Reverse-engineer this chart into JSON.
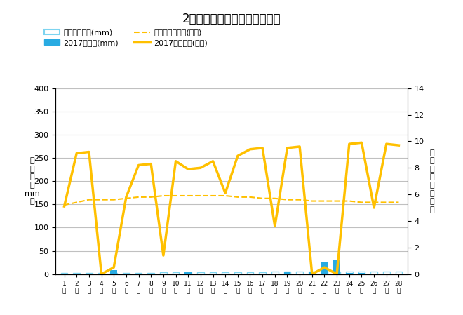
{
  "title": "2月降水量・日照時間（日別）",
  "days": [
    1,
    2,
    3,
    4,
    5,
    6,
    7,
    8,
    9,
    10,
    11,
    12,
    13,
    14,
    15,
    16,
    17,
    18,
    19,
    20,
    21,
    22,
    23,
    24,
    25,
    26,
    27,
    28
  ],
  "precipitation_2017": [
    0,
    0,
    0,
    0,
    8,
    0,
    0,
    0,
    0,
    0,
    5,
    0,
    0,
    0,
    0,
    0,
    0,
    0,
    5,
    0,
    6,
    25,
    30,
    3,
    3,
    0,
    0,
    0
  ],
  "precipitation_avg": [
    3,
    3,
    3,
    3,
    3,
    3,
    3,
    3,
    4,
    4,
    4,
    4,
    4,
    4,
    4,
    4,
    4,
    5,
    5,
    5,
    5,
    5,
    5,
    5,
    5,
    5,
    5,
    5
  ],
  "sunshine_2017": [
    5.1,
    9.1,
    9.2,
    0.0,
    0.5,
    5.8,
    8.2,
    8.3,
    1.4,
    8.5,
    7.9,
    8.0,
    8.5,
    6.1,
    8.9,
    9.4,
    9.5,
    3.6,
    9.5,
    9.6,
    0.0,
    0.5,
    0.0,
    9.8,
    9.9,
    5.0,
    9.8,
    9.7
  ],
  "sunshine_avg": [
    5.2,
    5.4,
    5.6,
    5.6,
    5.6,
    5.7,
    5.8,
    5.8,
    5.9,
    5.9,
    5.9,
    5.9,
    5.9,
    5.9,
    5.8,
    5.8,
    5.7,
    5.7,
    5.6,
    5.6,
    5.5,
    5.5,
    5.5,
    5.5,
    5.4,
    5.4,
    5.4,
    5.4
  ],
  "ylim_left": [
    0,
    400
  ],
  "ylim_right": [
    0,
    14
  ],
  "bar_color_2017": "#29ABE2",
  "bar_avg_edge_color": "#7DD4F0",
  "bar_avg_face_color": "none",
  "line_sunshine_color": "#FFC000",
  "line_sunshine_avg_color": "#FFC000",
  "legend_labels": [
    "降水量平年値(mm)",
    "2017降水量(mm)",
    "日照時間平年値(時間)",
    "2017日照時間(時間)"
  ],
  "ylabel_left": "降\n水\n量\n（\nmm\n）",
  "ylabel_right": "日\n照\n時\n間\n（\n時\n間\n）",
  "background_color": "#FFFFFF",
  "grid_color": "#C0C0C0",
  "yticks_left": [
    0,
    50,
    100,
    150,
    200,
    250,
    300,
    350,
    400
  ],
  "yticks_right": [
    0,
    2,
    4,
    6,
    8,
    10,
    12,
    14
  ]
}
